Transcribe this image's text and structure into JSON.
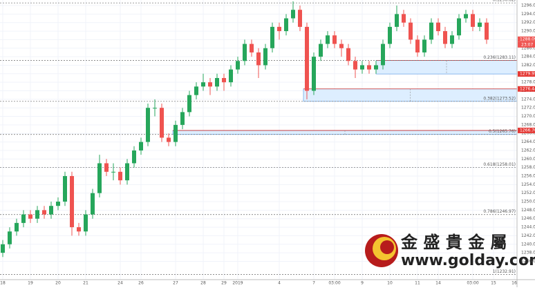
{
  "chart_data": {
    "type": "candlestick",
    "up_color": "#26a65b",
    "down_color": "#ef5350",
    "categories": [
      "18",
      null,
      null,
      null,
      "19",
      null,
      null,
      null,
      "20",
      null,
      null,
      null,
      "21",
      null,
      null,
      null,
      null,
      "24",
      null,
      null,
      "26",
      null,
      null,
      null,
      null,
      "27",
      null,
      null,
      null,
      "28",
      null,
      null,
      "29",
      null,
      "2019",
      null,
      null,
      null,
      null,
      null,
      "4",
      null,
      null,
      null,
      null,
      "7",
      null,
      null,
      "03:00",
      null,
      null,
      null,
      "9",
      null,
      null,
      null,
      "10",
      null,
      null,
      null,
      "11",
      null,
      null,
      "14",
      null,
      null,
      null,
      null,
      "03:00",
      null,
      null,
      "15",
      null,
      null,
      "16"
    ],
    "candles": [
      [
        1238,
        1241,
        1237,
        1240
      ],
      [
        1240,
        1244,
        1239,
        1243
      ],
      [
        1243,
        1246,
        1242,
        1245
      ],
      [
        1245,
        1248,
        1244,
        1247
      ],
      [
        1247,
        1248,
        1245,
        1246
      ],
      [
        1246,
        1249,
        1245,
        1248
      ],
      [
        1248,
        1249,
        1246,
        1247
      ],
      [
        1247,
        1250,
        1246,
        1249
      ],
      [
        1249,
        1251,
        1248,
        1250
      ],
      [
        1250,
        1257,
        1249,
        1256
      ],
      [
        1256,
        1257,
        1242,
        1244
      ],
      [
        1244,
        1245,
        1242,
        1243
      ],
      [
        1243,
        1248,
        1242,
        1247
      ],
      [
        1247,
        1253,
        1246,
        1252
      ],
      [
        1252,
        1261,
        1251,
        1259
      ],
      [
        1259,
        1260,
        1256,
        1257
      ],
      [
        1257,
        1259,
        1255,
        1257
      ],
      [
        1257,
        1258,
        1254,
        1255
      ],
      [
        1255,
        1260,
        1254,
        1259
      ],
      [
        1259,
        1263,
        1258,
        1262
      ],
      [
        1262,
        1265,
        1261,
        1264
      ],
      [
        1264,
        1273,
        1263,
        1272
      ],
      [
        1272,
        1274,
        1270,
        1272
      ],
      [
        1272,
        1273,
        1264,
        1265
      ],
      [
        1265,
        1266,
        1263,
        1264
      ],
      [
        1264,
        1269,
        1263,
        1268
      ],
      [
        1268,
        1272,
        1267,
        1271
      ],
      [
        1271,
        1276,
        1270,
        1275
      ],
      [
        1275,
        1278,
        1274,
        1277
      ],
      [
        1277,
        1280,
        1276,
        1278
      ],
      [
        1278,
        1279,
        1275,
        1277
      ],
      [
        1277,
        1280,
        1276,
        1279
      ],
      [
        1279,
        1280,
        1276,
        1278
      ],
      [
        1278,
        1282,
        1277,
        1281
      ],
      [
        1281,
        1284,
        1280,
        1283
      ],
      [
        1283,
        1288,
        1282,
        1287
      ],
      [
        1287,
        1288,
        1284,
        1285
      ],
      [
        1285,
        1286,
        1279,
        1282
      ],
      [
        1282,
        1287,
        1281,
        1286
      ],
      [
        1286,
        1292,
        1285,
        1291
      ],
      [
        1291,
        1292,
        1288,
        1290
      ],
      [
        1290,
        1294,
        1289,
        1293
      ],
      [
        1293,
        1297,
        1292,
        1295
      ],
      [
        1295,
        1296,
        1290,
        1291
      ],
      [
        1291,
        1292,
        1274,
        1276
      ],
      [
        1276,
        1285,
        1275,
        1284
      ],
      [
        1284,
        1288,
        1283,
        1287
      ],
      [
        1287,
        1290,
        1286,
        1289
      ],
      [
        1289,
        1290,
        1286,
        1287
      ],
      [
        1287,
        1288,
        1284,
        1286
      ],
      [
        1286,
        1287,
        1282,
        1283
      ],
      [
        1283,
        1284,
        1279,
        1281
      ],
      [
        1281,
        1283,
        1280,
        1282
      ],
      [
        1282,
        1283,
        1280,
        1281
      ],
      [
        1281,
        1283,
        1280,
        1282
      ],
      [
        1282,
        1288,
        1281,
        1287
      ],
      [
        1287,
        1292,
        1286,
        1291
      ],
      [
        1291,
        1296,
        1290,
        1294
      ],
      [
        1294,
        1295,
        1291,
        1292
      ],
      [
        1292,
        1293,
        1287,
        1288
      ],
      [
        1288,
        1289,
        1284,
        1285
      ],
      [
        1285,
        1289,
        1284,
        1288
      ],
      [
        1288,
        1293,
        1287,
        1292
      ],
      [
        1292,
        1293,
        1289,
        1290
      ],
      [
        1290,
        1291,
        1286,
        1287
      ],
      [
        1287,
        1290,
        1286,
        1289
      ],
      [
        1289,
        1294,
        1288,
        1293
      ],
      [
        1293,
        1295,
        1292,
        1294
      ],
      [
        1294,
        1295,
        1290,
        1291
      ],
      [
        1291,
        1293,
        1290,
        1292
      ],
      [
        1292,
        1293,
        1287,
        1288
      ],
      null,
      null,
      null,
      null
    ],
    "ylim": [
      1231.7,
      1297.3
    ],
    "yticks": [
      {
        "value": 1236,
        "label": "1236.00"
      },
      {
        "value": 1238,
        "label": "1238.00"
      },
      {
        "value": 1240,
        "label": "1240.00"
      },
      {
        "value": 1242,
        "label": "1242.00"
      },
      {
        "value": 1244,
        "label": "1244.00"
      },
      {
        "value": 1246,
        "label": "1246.00"
      },
      {
        "value": 1248,
        "label": "1248.00"
      },
      {
        "value": 1250,
        "label": "1250.00"
      },
      {
        "value": 1252,
        "label": "1252.00"
      },
      {
        "value": 1254,
        "label": "1254.00"
      },
      {
        "value": 1256,
        "label": "1256.00"
      },
      {
        "value": 1258,
        "label": "1258.00"
      },
      {
        "value": 1260,
        "label": "1260.00"
      },
      {
        "value": 1262,
        "label": "1262.00"
      },
      {
        "value": 1264,
        "label": "1264.00"
      },
      {
        "value": 1266,
        "label": "1266.00"
      },
      {
        "value": 1268,
        "label": "1268.00"
      },
      {
        "value": 1270,
        "label": "1270.00"
      },
      {
        "value": 1272,
        "label": "1272.00"
      },
      {
        "value": 1274,
        "label": "1274.00"
      },
      {
        "value": 1276,
        "label": "1276.00"
      },
      {
        "value": 1278,
        "label": "1278.00"
      },
      {
        "value": 1280,
        "label": "1280.00"
      },
      {
        "value": 1282,
        "label": "1282.00"
      },
      {
        "value": 1284,
        "label": "1284.00"
      },
      {
        "value": 1286,
        "label": "1286.00"
      },
      {
        "value": 1288,
        "label": "1288.00"
      },
      {
        "value": 1290,
        "label": "1290.00"
      },
      {
        "value": 1292,
        "label": "1292.00"
      },
      {
        "value": 1294,
        "label": "1294.00"
      },
      {
        "value": 1296,
        "label": "1296.00"
      }
    ],
    "grid": true,
    "fib_levels": [
      {
        "value": 1296.62,
        "label": "0(1296.62)"
      },
      {
        "value": 1283.11,
        "label": "0.236(1283.11)"
      },
      {
        "value": 1273.52,
        "label": "0.382(1273.52)"
      },
      {
        "value": 1265.76,
        "label": "0.5(1265.76)"
      },
      {
        "value": 1258.01,
        "label": "0.618(1258.01)"
      },
      {
        "value": 1246.97,
        "label": "0.786(1246.97)"
      },
      {
        "value": 1232.91,
        "label": "1(1232.91)"
      }
    ],
    "price_tags": [
      {
        "value": 1288.09,
        "label": "1288.09",
        "color": "#ef5350"
      },
      {
        "value": 1279.95,
        "label": "1279.95",
        "color": "#e53935"
      },
      {
        "value": 1276.44,
        "label": "1276.44",
        "color": "#e53935"
      },
      {
        "value": 1266.7,
        "label": "1266.70",
        "color": "#e53935"
      }
    ],
    "timer": "23:07",
    "watermark": {
      "name": "金 盛 貴 金 屬",
      "url": "www.golday.com"
    }
  }
}
